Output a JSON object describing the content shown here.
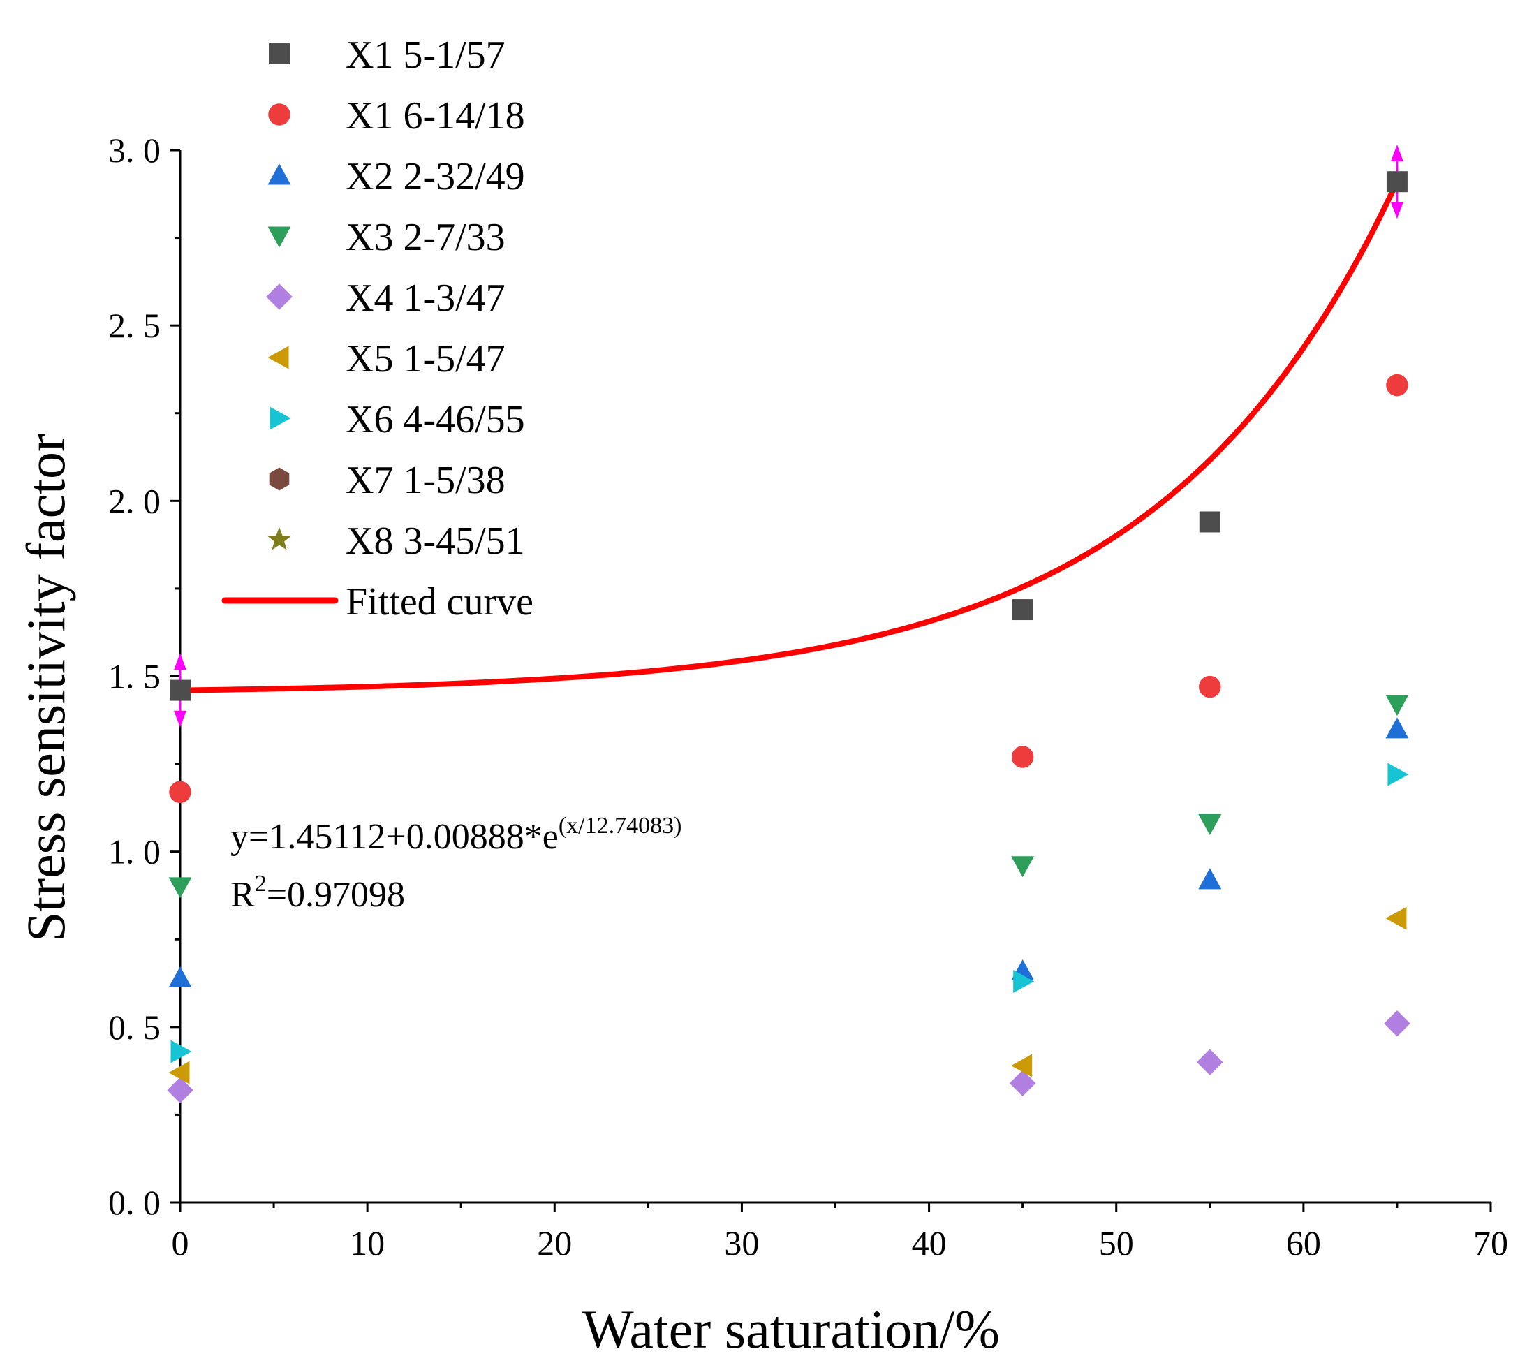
{
  "chart_data": {
    "type": "scatter",
    "title": "",
    "xlabel": "Water saturation/%",
    "ylabel": "Stress sensitivity factor",
    "xlim": [
      0,
      70
    ],
    "ylim": [
      0,
      3.0
    ],
    "xticks": [
      0,
      10,
      20,
      30,
      40,
      50,
      60,
      70
    ],
    "xtick_labels": [
      "0",
      "10",
      "20",
      "30",
      "40",
      "50",
      "60",
      "70"
    ],
    "yticks": [
      0,
      0.5,
      1.0,
      1.5,
      2.0,
      2.5,
      3.0
    ],
    "ytick_labels": [
      "0. 0",
      "0. 5",
      "1. 0",
      "1. 5",
      "2. 0",
      "2. 5",
      "3. 0"
    ],
    "legend_position": "top-left",
    "series": [
      {
        "name": "X1 5-1/57",
        "marker": "square",
        "color": "#4d4d4d",
        "points": [
          {
            "x": 0,
            "y": 1.46
          },
          {
            "x": 45,
            "y": 1.69
          },
          {
            "x": 55,
            "y": 1.94
          },
          {
            "x": 65,
            "y": 2.91
          }
        ]
      },
      {
        "name": "X1 6-14/18",
        "marker": "circle",
        "color": "#ee3b3b",
        "points": [
          {
            "x": 0,
            "y": 1.17
          },
          {
            "x": 45,
            "y": 1.27
          },
          {
            "x": 55,
            "y": 1.47
          },
          {
            "x": 65,
            "y": 2.33
          }
        ]
      },
      {
        "name": "X2 2-32/49",
        "marker": "triangle-up",
        "color": "#1f6fd8",
        "points": [
          {
            "x": 0,
            "y": 0.64
          },
          {
            "x": 45,
            "y": 0.66
          },
          {
            "x": 55,
            "y": 0.92
          },
          {
            "x": 65,
            "y": 1.35
          }
        ]
      },
      {
        "name": "X3 2-7/33",
        "marker": "triangle-down",
        "color": "#2e9e5b",
        "points": [
          {
            "x": 0,
            "y": 0.9
          },
          {
            "x": 45,
            "y": 0.96
          },
          {
            "x": 55,
            "y": 1.08
          },
          {
            "x": 65,
            "y": 1.42
          }
        ]
      },
      {
        "name": "X4 1-3/47",
        "marker": "diamond",
        "color": "#b07fe0",
        "points": [
          {
            "x": 0,
            "y": 0.32
          },
          {
            "x": 45,
            "y": 0.34
          },
          {
            "x": 55,
            "y": 0.4
          },
          {
            "x": 65,
            "y": 0.51
          }
        ]
      },
      {
        "name": "X5 1-5/47",
        "marker": "triangle-left",
        "color": "#cc9a06",
        "points": [
          {
            "x": 0,
            "y": 0.37
          },
          {
            "x": 45,
            "y": 0.39
          },
          {
            "x": 65,
            "y": 0.81
          }
        ]
      },
      {
        "name": "X6 4-46/55",
        "marker": "triangle-right",
        "color": "#17c4d4",
        "points": [
          {
            "x": 0,
            "y": 0.43
          },
          {
            "x": 45,
            "y": 0.63
          },
          {
            "x": 65,
            "y": 1.22
          }
        ]
      },
      {
        "name": "X7 1-5/38",
        "marker": "hexagon",
        "color": "#7b4a3f",
        "points": []
      },
      {
        "name": "X8 3-45/51",
        "marker": "star",
        "color": "#7d7d1a",
        "points": []
      }
    ],
    "fit": {
      "name": "Fitted curve",
      "color": "#ff0000",
      "y0": 1.45112,
      "A": 0.00888,
      "t": 12.74083,
      "x_range": [
        0,
        65
      ],
      "equation_main": "y=1.45112+0.00888*e",
      "equation_exp": "(x/12.74083)",
      "r2_prefix": "R",
      "r2_sup": "2",
      "r2_suffix": "=0.97098"
    },
    "error_markers": [
      {
        "x": 0,
        "y": 1.46,
        "half_range": 0.09,
        "color": "#ff00ff"
      },
      {
        "x": 65,
        "y": 2.91,
        "half_range": 0.09,
        "color": "#ff00ff"
      }
    ]
  }
}
